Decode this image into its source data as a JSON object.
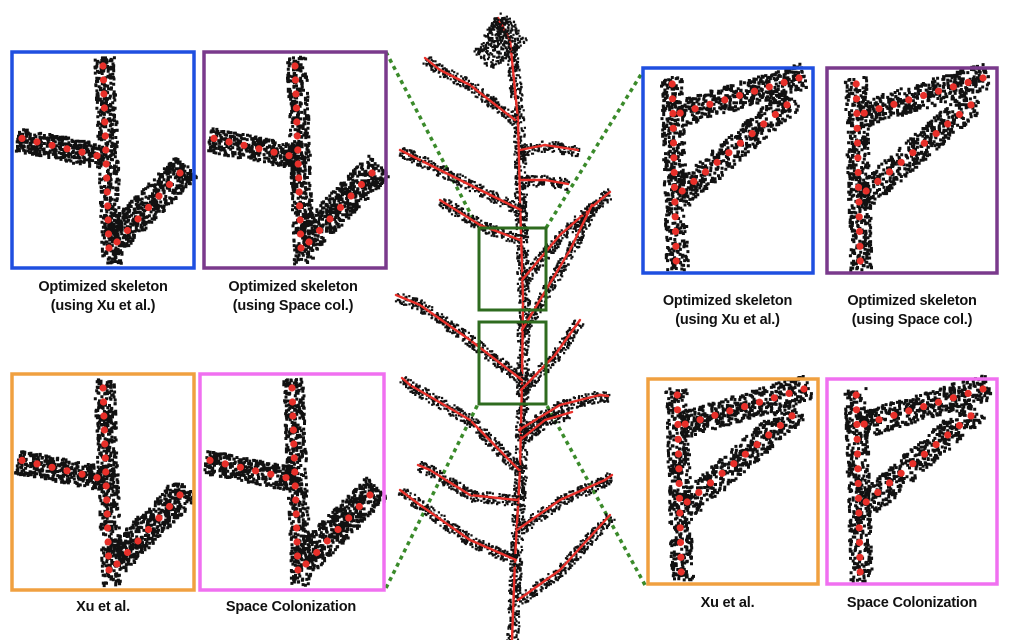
{
  "figure": {
    "panels": [
      {
        "key": "tl1",
        "caption": [
          "Optimized skeleton",
          "(using Xu et al.)"
        ],
        "border_color": "#1f4fe0",
        "variant": "y"
      },
      {
        "key": "tl2",
        "caption": [
          "Optimized skeleton",
          "(using Space col.)"
        ],
        "border_color": "#7a3a8c",
        "variant": "y"
      },
      {
        "key": "bl1",
        "caption": [
          "Xu et al."
        ],
        "border_color": "#f0a040",
        "variant": "y"
      },
      {
        "key": "bl2",
        "caption": [
          "Space Colonization"
        ],
        "border_color": "#f070f0",
        "variant": "y"
      },
      {
        "key": "tr1",
        "caption": [
          "Optimized skeleton",
          "(using Xu et al.)"
        ],
        "border_color": "#1f4fe0",
        "variant": "v"
      },
      {
        "key": "tr2",
        "caption": [
          "Optimized skeleton",
          "(using Space col.)"
        ],
        "border_color": "#7a3a8c",
        "variant": "v"
      },
      {
        "key": "br1",
        "caption": [
          "Xu et al."
        ],
        "border_color": "#f0a040",
        "variant": "v"
      },
      {
        "key": "br2",
        "caption": [
          "Space Colonization"
        ],
        "border_color": "#f070f0",
        "variant": "v"
      }
    ],
    "colors": {
      "point_cloud": "#111111",
      "skeleton_node": "#e8302a",
      "zoom_box": "#2e6b1f",
      "connector": "#3a8a2a"
    }
  }
}
